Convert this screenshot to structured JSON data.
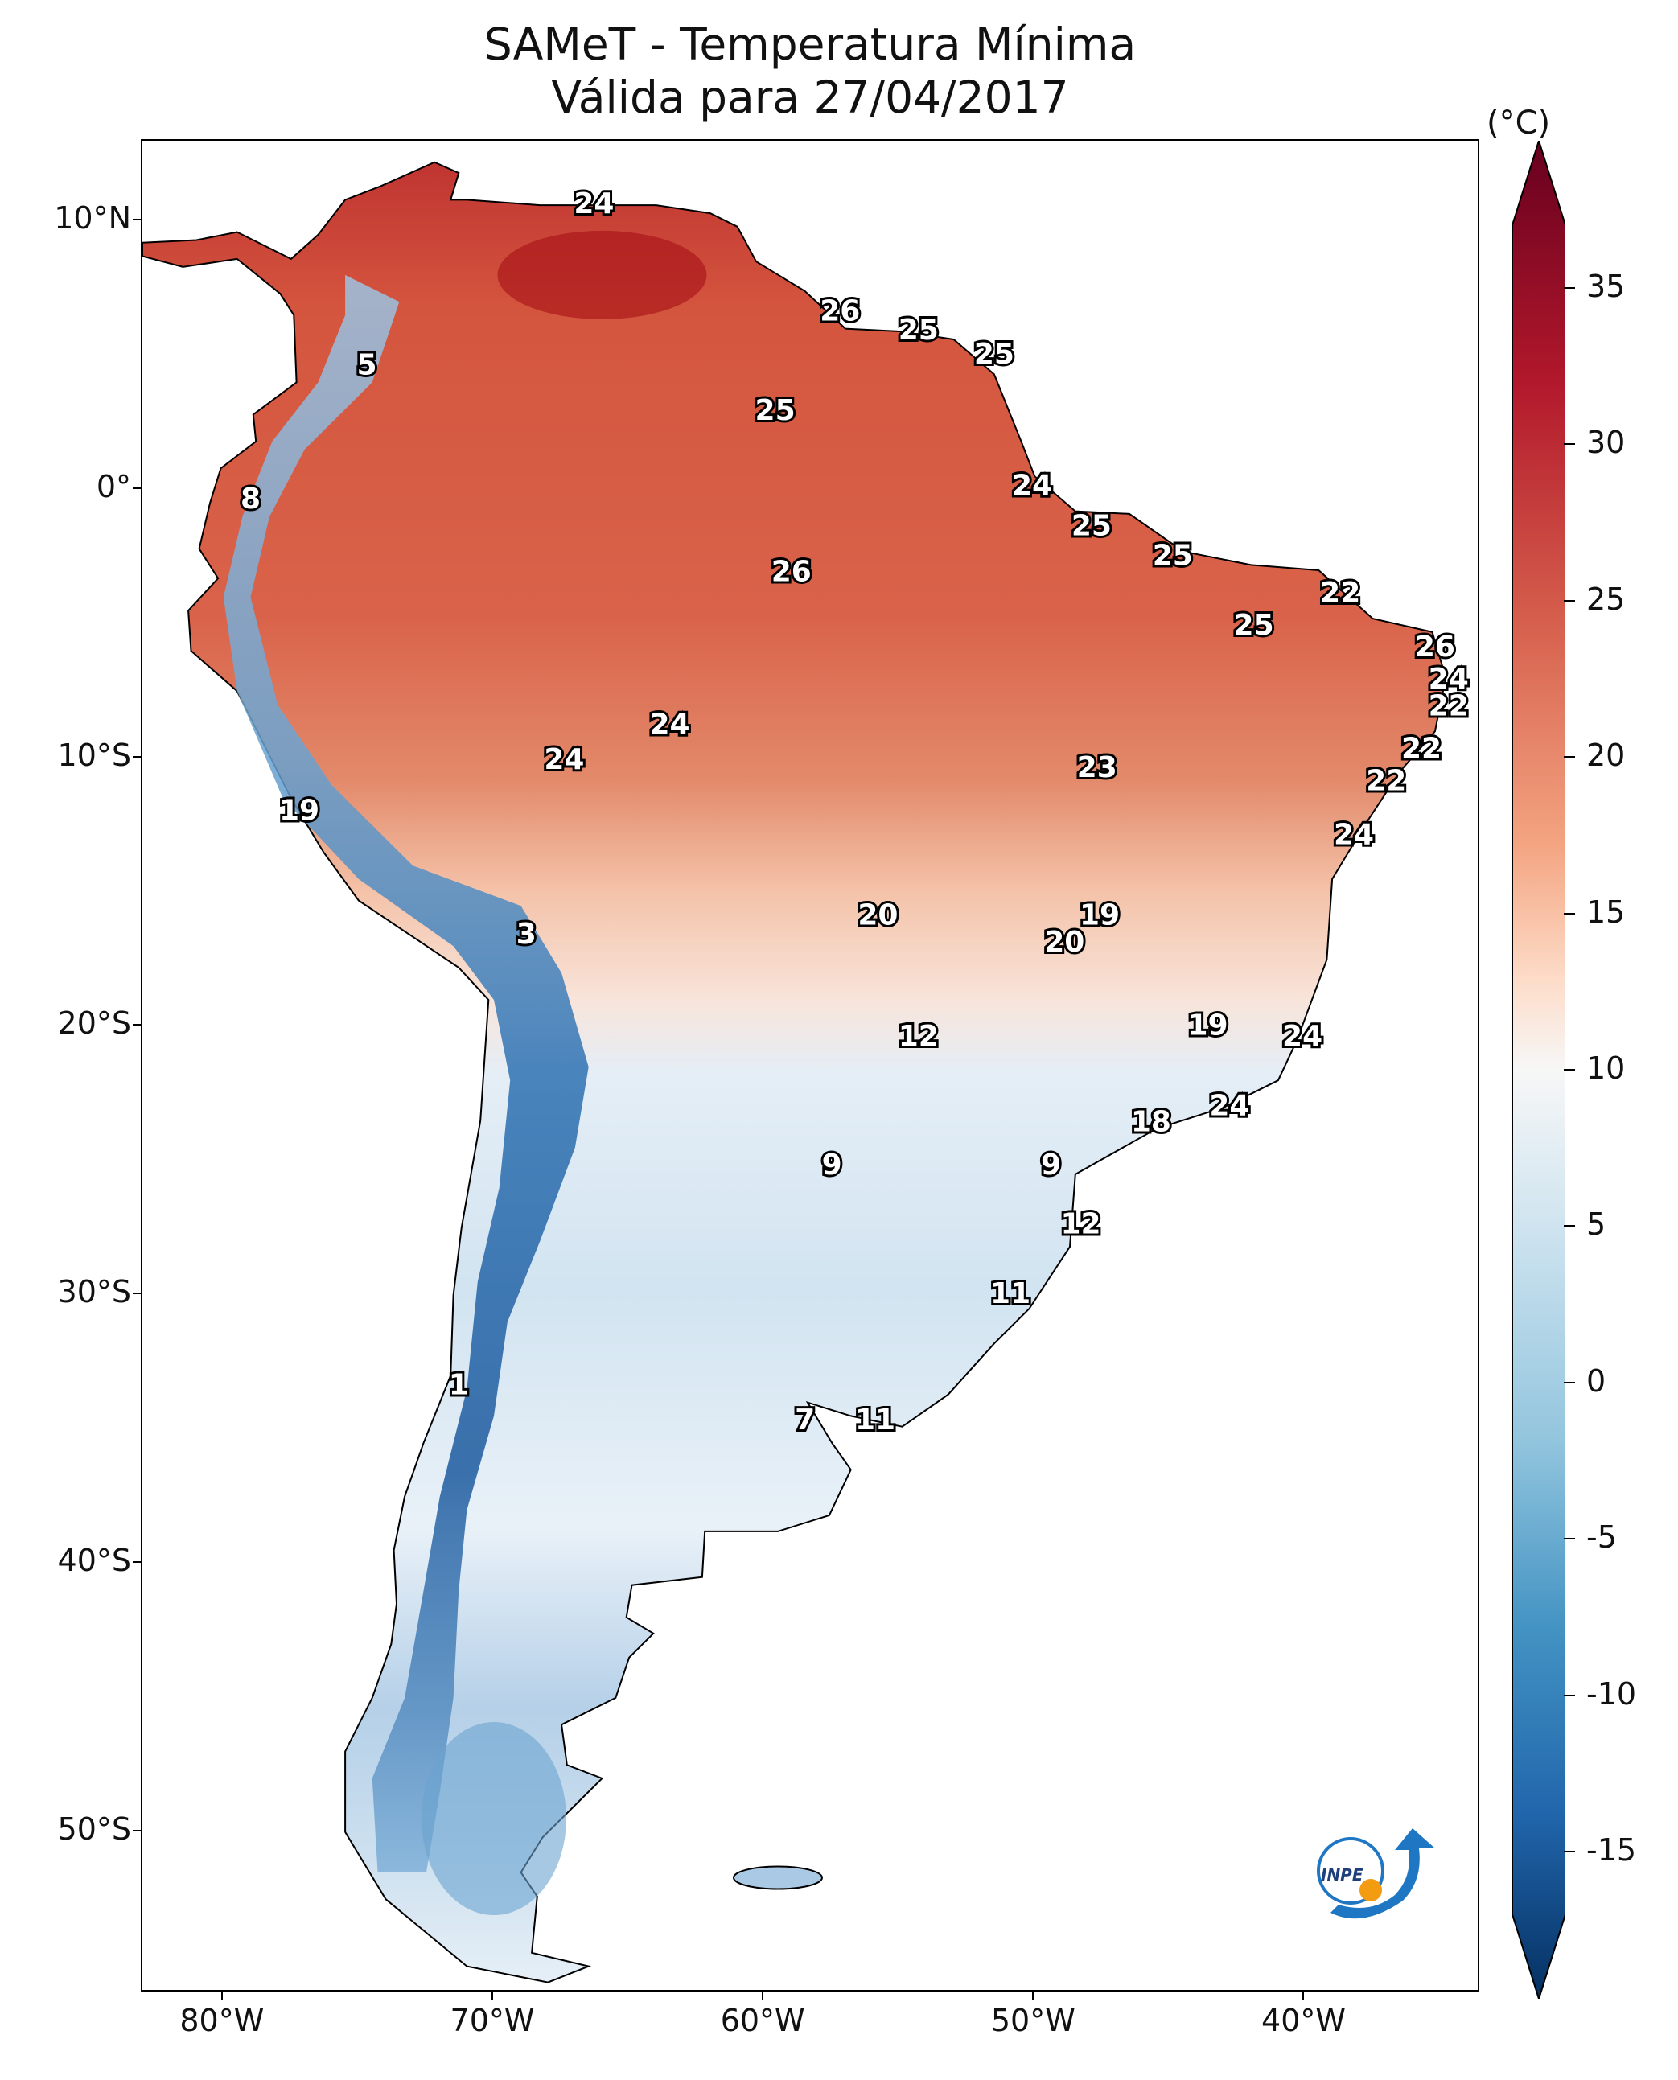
{
  "title": {
    "line1": "SAMeT - Temperatura Mínima",
    "line2": "Válida para 27/04/2017"
  },
  "map": {
    "lat_ticks": [
      {
        "value": 10,
        "label": "10°N"
      },
      {
        "value": 0,
        "label": "0°"
      },
      {
        "value": -10,
        "label": "10°S"
      },
      {
        "value": -20,
        "label": "20°S"
      },
      {
        "value": -30,
        "label": "30°S"
      },
      {
        "value": -40,
        "label": "40°S"
      },
      {
        "value": -50,
        "label": "50°S"
      }
    ],
    "lon_ticks": [
      {
        "value": -80,
        "label": "80°W"
      },
      {
        "value": -70,
        "label": "70°W"
      },
      {
        "value": -60,
        "label": "60°W"
      },
      {
        "value": -50,
        "label": "50°W"
      },
      {
        "value": -40,
        "label": "40°W"
      }
    ],
    "extent": {
      "lon_min": -83,
      "lon_max": -33.5,
      "lat_min": -56,
      "lat_max": 13
    },
    "contour_labels": [
      {
        "text": "24",
        "lon": -66.3,
        "lat": 10.6
      },
      {
        "text": "5",
        "lon": -74.7,
        "lat": 4.6
      },
      {
        "text": "26",
        "lon": -57.2,
        "lat": 6.6
      },
      {
        "text": "25",
        "lon": -54.3,
        "lat": 5.9
      },
      {
        "text": "25",
        "lon": -51.5,
        "lat": 5.0
      },
      {
        "text": "25",
        "lon": -59.6,
        "lat": 2.9
      },
      {
        "text": "8",
        "lon": -79.0,
        "lat": -0.4
      },
      {
        "text": "24",
        "lon": -50.1,
        "lat": 0.1
      },
      {
        "text": "25",
        "lon": -47.9,
        "lat": -1.4
      },
      {
        "text": "25",
        "lon": -44.9,
        "lat": -2.5
      },
      {
        "text": "26",
        "lon": -59.0,
        "lat": -3.1
      },
      {
        "text": "22",
        "lon": -38.7,
        "lat": -3.9
      },
      {
        "text": "25",
        "lon": -41.9,
        "lat": -5.1
      },
      {
        "text": "26",
        "lon": -35.2,
        "lat": -5.9
      },
      {
        "text": "24",
        "lon": -34.7,
        "lat": -7.1
      },
      {
        "text": "22",
        "lon": -34.7,
        "lat": -8.1
      },
      {
        "text": "24",
        "lon": -63.5,
        "lat": -8.8
      },
      {
        "text": "22",
        "lon": -35.7,
        "lat": -9.7
      },
      {
        "text": "24",
        "lon": -67.4,
        "lat": -10.1
      },
      {
        "text": "23",
        "lon": -47.7,
        "lat": -10.4
      },
      {
        "text": "22",
        "lon": -37.0,
        "lat": -10.9
      },
      {
        "text": "19",
        "lon": -77.2,
        "lat": -12.0
      },
      {
        "text": "24",
        "lon": -38.2,
        "lat": -12.9
      },
      {
        "text": "20",
        "lon": -55.8,
        "lat": -15.9
      },
      {
        "text": "19",
        "lon": -47.6,
        "lat": -15.9
      },
      {
        "text": "20",
        "lon": -48.9,
        "lat": -16.9
      },
      {
        "text": "3",
        "lon": -68.8,
        "lat": -16.6
      },
      {
        "text": "12",
        "lon": -54.3,
        "lat": -20.4
      },
      {
        "text": "19",
        "lon": -43.6,
        "lat": -20.0
      },
      {
        "text": "24",
        "lon": -40.1,
        "lat": -20.4
      },
      {
        "text": "24",
        "lon": -42.8,
        "lat": -23.0
      },
      {
        "text": "18",
        "lon": -45.7,
        "lat": -23.6
      },
      {
        "text": "9",
        "lon": -57.5,
        "lat": -25.2
      },
      {
        "text": "9",
        "lon": -49.4,
        "lat": -25.2
      },
      {
        "text": "12",
        "lon": -48.3,
        "lat": -27.4
      },
      {
        "text": "11",
        "lon": -50.9,
        "lat": -30.0
      },
      {
        "text": "1",
        "lon": -71.3,
        "lat": -33.4
      },
      {
        "text": "7",
        "lon": -58.5,
        "lat": -34.7
      },
      {
        "text": "11",
        "lon": -55.9,
        "lat": -34.7
      }
    ]
  },
  "colorbar": {
    "unit": "(°C)",
    "min": -17,
    "max": 37,
    "ticks": [
      {
        "value": 35,
        "label": "35"
      },
      {
        "value": 30,
        "label": "30"
      },
      {
        "value": 25,
        "label": "25"
      },
      {
        "value": 20,
        "label": "20"
      },
      {
        "value": 15,
        "label": "15"
      },
      {
        "value": 10,
        "label": "10"
      },
      {
        "value": 5,
        "label": "5"
      },
      {
        "value": 0,
        "label": "0"
      },
      {
        "value": -5,
        "label": "-5"
      },
      {
        "value": -10,
        "label": "-10"
      },
      {
        "value": -15,
        "label": "-15"
      }
    ]
  },
  "logo": {
    "text": "INPE",
    "colors": {
      "blue": "#1f77c4",
      "orange": "#f39c12"
    }
  }
}
